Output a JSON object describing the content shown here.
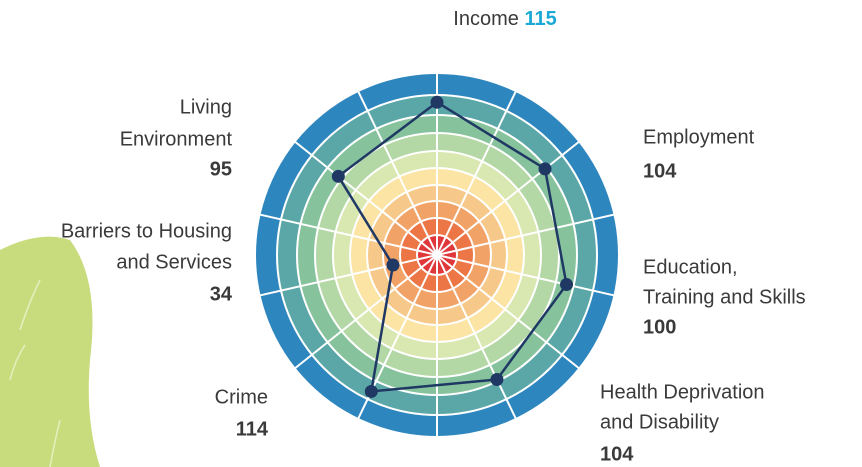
{
  "chart_data": {
    "type": "radar",
    "categories": [
      [
        "Income"
      ],
      [
        "Employment"
      ],
      [
        "Education,",
        "Training and Skills"
      ],
      [
        "Health Deprivation",
        "and Disability"
      ],
      [
        "Crime"
      ],
      [
        "Barriers to Housing",
        "and Services"
      ],
      [
        "Living",
        "Environment"
      ]
    ],
    "values": [
      115,
      104,
      100,
      104,
      114,
      34,
      95
    ],
    "rlim": [
      0,
      137
    ],
    "color": "#1f3864",
    "value_color": "#1aa9d6"
  }
}
